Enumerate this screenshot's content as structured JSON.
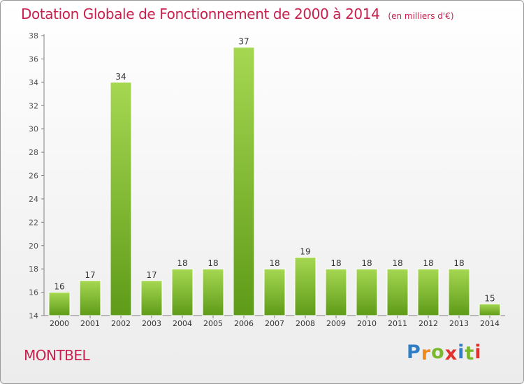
{
  "title": "Dotation Globale de Fonctionnement de 2000 à 2014",
  "unit": "(en milliers d'€)",
  "commune": "MONTBEL",
  "logo": {
    "letters": [
      "P",
      "r",
      "o",
      "x",
      "i",
      "t",
      "i"
    ],
    "colors": [
      "#2f7fc8",
      "#f08a1c",
      "#7ab82c",
      "#e2322c",
      "#2f7fc8",
      "#7ab82c",
      "#e2322c"
    ]
  },
  "colors": {
    "bar_light": "#a6d752",
    "bar_dark": "#5e9b18",
    "text": "#c8204e",
    "axis": "#808080"
  },
  "chart_data": {
    "type": "bar",
    "title": "Dotation Globale de Fonctionnement de 2000 à 2014",
    "subtitle": "(en milliers d'€)",
    "categories": [
      "2000",
      "2001",
      "2002",
      "2003",
      "2004",
      "2005",
      "2006",
      "2007",
      "2008",
      "2009",
      "2010",
      "2011",
      "2012",
      "2013",
      "2014"
    ],
    "values": [
      16,
      17,
      34,
      17,
      18,
      18,
      37,
      18,
      19,
      18,
      18,
      18,
      18,
      18,
      15
    ],
    "ylim": [
      14,
      38
    ],
    "yticks": [
      14,
      16,
      18,
      20,
      22,
      24,
      26,
      28,
      30,
      32,
      34,
      36,
      38
    ],
    "grid": false,
    "data_labels": true
  }
}
